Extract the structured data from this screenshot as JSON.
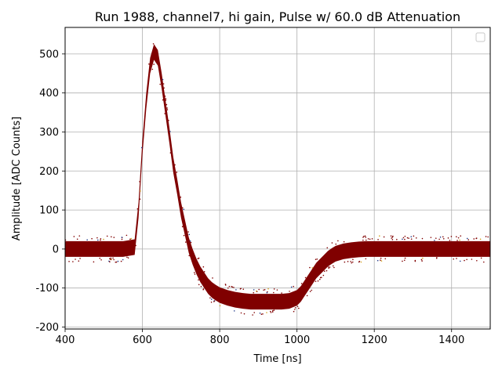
{
  "chart_data": {
    "type": "scatter",
    "title": "Run 1988, channel7, hi gain, Pulse w/ 60.0 dB Attenuation",
    "xlabel": "Time [ns]",
    "ylabel": "Amplitude [ADC Counts]",
    "xlim": [
      400,
      1500
    ],
    "ylim": [
      -205,
      568
    ],
    "xticks": [
      400,
      600,
      800,
      1000,
      1200,
      1400
    ],
    "yticks": [
      -200,
      -100,
      0,
      100,
      200,
      300,
      400,
      500
    ],
    "grid": true,
    "legend": {
      "placement": "top-right",
      "entries": []
    },
    "series": [
      {
        "color": "#800000",
        "accent_colors": [
          "#1f3a8a",
          "#d4a017"
        ],
        "band_halfwidth": 20,
        "x": [
          400,
          450,
          500,
          550,
          580,
          590,
          600,
          610,
          620,
          630,
          640,
          650,
          660,
          670,
          680,
          690,
          700,
          710,
          720,
          730,
          740,
          750,
          760,
          770,
          780,
          790,
          800,
          820,
          840,
          860,
          880,
          900,
          920,
          940,
          960,
          980,
          1000,
          1010,
          1020,
          1030,
          1040,
          1050,
          1060,
          1070,
          1080,
          1090,
          1100,
          1120,
          1140,
          1160,
          1180,
          1200,
          1250,
          1300,
          1350,
          1400,
          1450,
          1500
        ],
        "y": [
          0,
          0,
          0,
          0,
          5,
          100,
          260,
          380,
          470,
          505,
          490,
          430,
          360,
          290,
          215,
          160,
          100,
          55,
          10,
          -20,
          -45,
          -65,
          -80,
          -95,
          -105,
          -112,
          -118,
          -125,
          -130,
          -133,
          -135,
          -135,
          -135,
          -135,
          -135,
          -133,
          -125,
          -115,
          -100,
          -85,
          -70,
          -55,
          -45,
          -35,
          -25,
          -18,
          -12,
          -6,
          -3,
          -1,
          0,
          0,
          0,
          0,
          0,
          0,
          0,
          0
        ]
      }
    ]
  }
}
